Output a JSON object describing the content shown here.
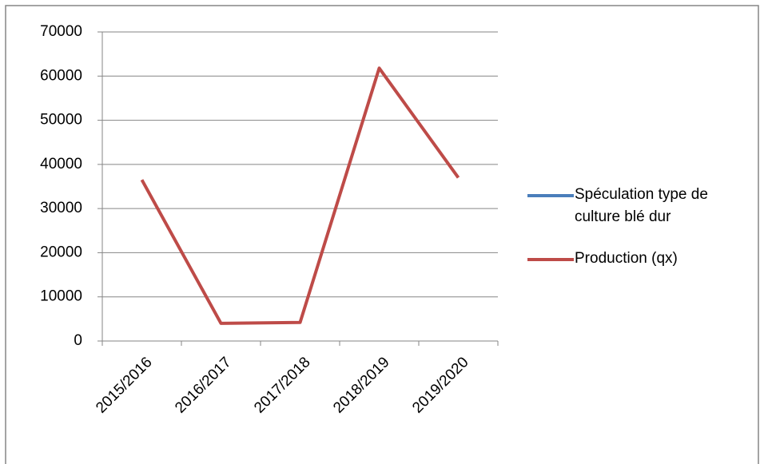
{
  "chart_data": {
    "type": "line",
    "categories": [
      "2015/2016",
      "2016/2017",
      "2017/2018",
      "2018/2019",
      "2019/2020"
    ],
    "series": [
      {
        "name": "Spéculation type de culture blé dur",
        "color": "#4a7ebb",
        "values": [
          null,
          null,
          null,
          null,
          null
        ]
      },
      {
        "name": "Production (qx)",
        "color": "#be4b48",
        "values": [
          36500,
          4000,
          4200,
          61800,
          37000
        ]
      }
    ],
    "ylim": [
      0,
      70000
    ],
    "yticks": [
      0,
      10000,
      20000,
      30000,
      40000,
      50000,
      60000,
      70000
    ],
    "grid": true,
    "legend": "right"
  }
}
